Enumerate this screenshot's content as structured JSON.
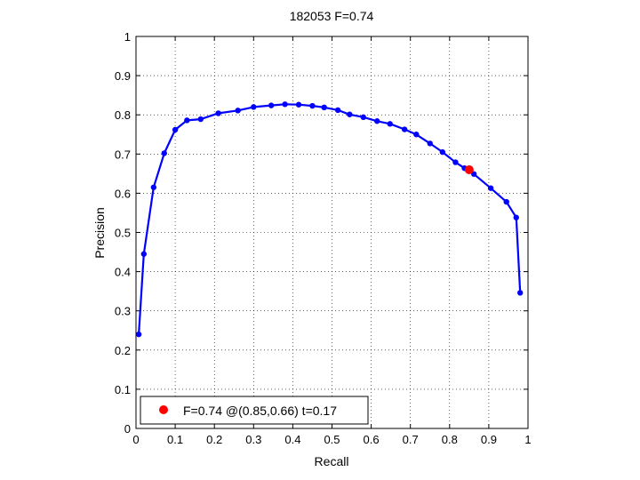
{
  "chart_data": {
    "type": "line",
    "title": "182053 F=0.74",
    "xlabel": "Recall",
    "ylabel": "Precision",
    "xlim": [
      0,
      1
    ],
    "ylim": [
      0,
      1
    ],
    "xticks": [
      "0",
      "0.1",
      "0.2",
      "0.3",
      "0.4",
      "0.5",
      "0.6",
      "0.7",
      "0.8",
      "0.9",
      "1"
    ],
    "yticks": [
      "0",
      "0.1",
      "0.2",
      "0.3",
      "0.4",
      "0.5",
      "0.6",
      "0.7",
      "0.8",
      "0.9",
      "1"
    ],
    "grid": true,
    "series": [
      {
        "color": "#0000ff",
        "marker": "dot",
        "points": [
          [
            0.007,
            0.24
          ],
          [
            0.02,
            0.445
          ],
          [
            0.045,
            0.615
          ],
          [
            0.072,
            0.702
          ],
          [
            0.1,
            0.762
          ],
          [
            0.13,
            0.786
          ],
          [
            0.165,
            0.789
          ],
          [
            0.21,
            0.804
          ],
          [
            0.26,
            0.811
          ],
          [
            0.3,
            0.82
          ],
          [
            0.345,
            0.824
          ],
          [
            0.38,
            0.827
          ],
          [
            0.415,
            0.826
          ],
          [
            0.45,
            0.823
          ],
          [
            0.48,
            0.819
          ],
          [
            0.515,
            0.812
          ],
          [
            0.545,
            0.801
          ],
          [
            0.58,
            0.794
          ],
          [
            0.615,
            0.784
          ],
          [
            0.648,
            0.777
          ],
          [
            0.685,
            0.763
          ],
          [
            0.715,
            0.75
          ],
          [
            0.75,
            0.727
          ],
          [
            0.782,
            0.705
          ],
          [
            0.815,
            0.679
          ],
          [
            0.838,
            0.664
          ],
          [
            0.862,
            0.649
          ],
          [
            0.905,
            0.613
          ],
          [
            0.945,
            0.578
          ],
          [
            0.97,
            0.538
          ],
          [
            0.98,
            0.346
          ]
        ]
      }
    ],
    "best_point": {
      "x": 0.85,
      "y": 0.66,
      "color": "#ff0000"
    },
    "legend": {
      "position": "bottom-left",
      "label": "F=0.74 @(0.85,0.66) t=0.17"
    }
  }
}
